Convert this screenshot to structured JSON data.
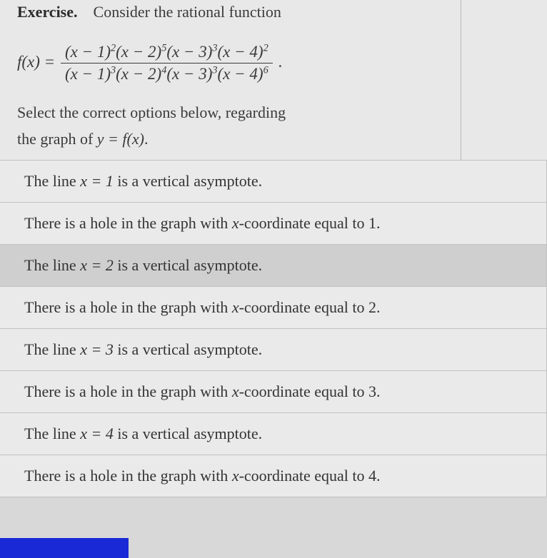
{
  "header": {
    "label": "Exercise.",
    "intro": "Consider the rational function"
  },
  "formula": {
    "lhs": "f(x) =",
    "num_terms": [
      {
        "base": "(x − 1)",
        "exp": "2"
      },
      {
        "base": "(x − 2)",
        "exp": "5"
      },
      {
        "base": "(x − 3)",
        "exp": "3"
      },
      {
        "base": "(x − 4)",
        "exp": "2"
      }
    ],
    "den_terms": [
      {
        "base": "(x − 1)",
        "exp": "3"
      },
      {
        "base": "(x − 2)",
        "exp": "4"
      },
      {
        "base": "(x − 3)",
        "exp": "3"
      },
      {
        "base": "(x − 4)",
        "exp": "6"
      }
    ],
    "trail": "."
  },
  "prompt": {
    "line1": "Select the correct options below, regarding",
    "line2_pre": "the graph of ",
    "line2_math": "y = f(x)",
    "line2_post": "."
  },
  "options": [
    {
      "pre": "The line ",
      "math": "x = 1",
      "post": " is a vertical asymptote.",
      "selected": false
    },
    {
      "pre": "There is a hole in the graph with ",
      "math": "x",
      "post": "-coordinate equal to 1.",
      "selected": false
    },
    {
      "pre": "The line ",
      "math": "x = 2",
      "post": " is a vertical asymptote.",
      "selected": true
    },
    {
      "pre": "There is a hole in the graph with ",
      "math": "x",
      "post": "-coordinate equal to 2.",
      "selected": false
    },
    {
      "pre": "The line ",
      "math": "x = 3",
      "post": " is a vertical asymptote.",
      "selected": false
    },
    {
      "pre": "There is a hole in the graph with ",
      "math": "x",
      "post": "-coordinate equal to 3.",
      "selected": false
    },
    {
      "pre": "The line ",
      "math": "x = 4",
      "post": " is a vertical asymptote.",
      "selected": false
    },
    {
      "pre": "There is a hole in the graph with ",
      "math": "x",
      "post": "-coordinate equal to 4.",
      "selected": false
    }
  ],
  "colors": {
    "page_bg": "#e8e8e8",
    "option_bg": "#eaeaea",
    "selected_bg": "#cfcfcf",
    "border": "#c2c2c2",
    "text": "#3a3a3a",
    "accent_bar": "#1929d6"
  }
}
